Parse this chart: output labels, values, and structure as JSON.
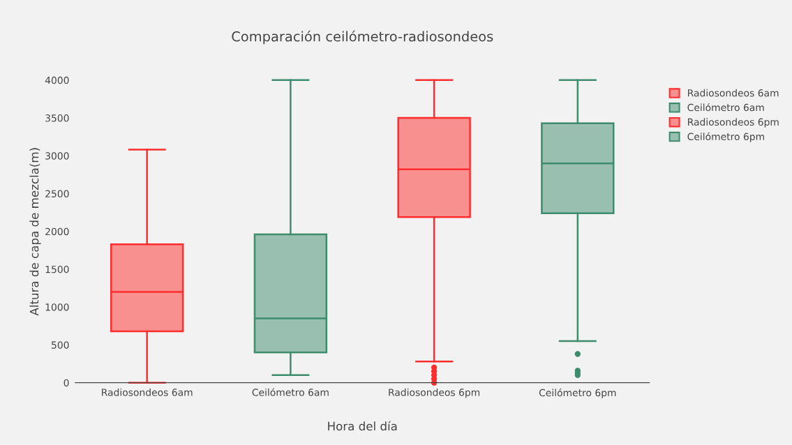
{
  "chart_data": {
    "type": "box",
    "title": "Comparación ceilómetro-radiosondeos",
    "xlabel": "Hora del día",
    "ylabel": "Altura de capa de mezcla(m)",
    "categories": [
      "Radiosondeos 6am",
      "Ceilómetro 6am",
      "Radiosondeos 6pm",
      "Ceilómetro 6pm"
    ],
    "series": [
      {
        "name": "Radiosondeos 6am",
        "color": "#ff2d2d",
        "boxes": [
          {
            "low": 0,
            "q1": 680,
            "median": 1200,
            "q3": 1830,
            "high": 3080
          },
          null,
          null,
          null
        ]
      },
      {
        "name": "Ceilómetro 6am",
        "color": "#3d8c6e",
        "boxes": [
          null,
          {
            "low": 100,
            "q1": 400,
            "median": 850,
            "q3": 1960,
            "high": 4000
          },
          null,
          null
        ]
      },
      {
        "name": "Radiosondeos 6pm",
        "color": "#ff2d2d",
        "boxes": [
          null,
          null,
          {
            "low": 280,
            "q1": 2190,
            "median": 2820,
            "q3": 3500,
            "high": 4000,
            "outliers": [
              0,
              50,
              100,
              150,
              200
            ]
          },
          null
        ]
      },
      {
        "name": "Ceilómetro 6pm",
        "color": "#3d8c6e",
        "boxes": [
          null,
          null,
          null,
          {
            "low": 550,
            "q1": 2240,
            "median": 2900,
            "q3": 3430,
            "high": 4000,
            "outliers": [
              100,
              130,
              160,
              380
            ]
          }
        ]
      }
    ],
    "ylim": [
      0,
      4000
    ],
    "yticks": [
      0,
      500,
      1000,
      1500,
      2000,
      2500,
      3000,
      3500,
      4000
    ],
    "grid": false,
    "legend": "top right"
  }
}
